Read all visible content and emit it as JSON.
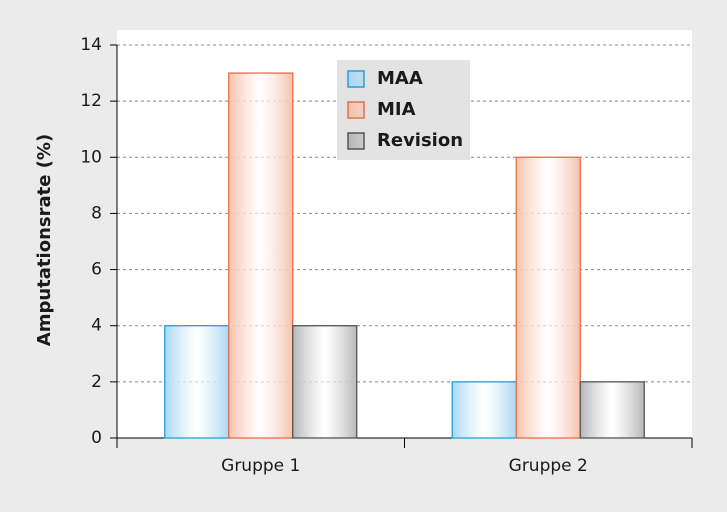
{
  "chart_data": {
    "type": "bar",
    "y_label": "Amputationsrate (%)",
    "categories": [
      "Gruppe 1",
      "Gruppe 2"
    ],
    "series": [
      {
        "name": "MAA",
        "color": "#a9d8f5",
        "edge_color": "#2a9fd6",
        "values": [
          4,
          2
        ]
      },
      {
        "name": "MIA",
        "color": "#f6c2ab",
        "edge_color": "#e5704a",
        "values": [
          13,
          10
        ]
      },
      {
        "name": "Revision",
        "color": "#b5b6b8",
        "edge_color": "#555555",
        "values": [
          4,
          2
        ]
      }
    ],
    "ylim": [
      0,
      14
    ],
    "yticks": [
      0,
      2,
      4,
      6,
      8,
      10,
      12,
      14
    ],
    "grid": true,
    "legend": "upper center"
  }
}
